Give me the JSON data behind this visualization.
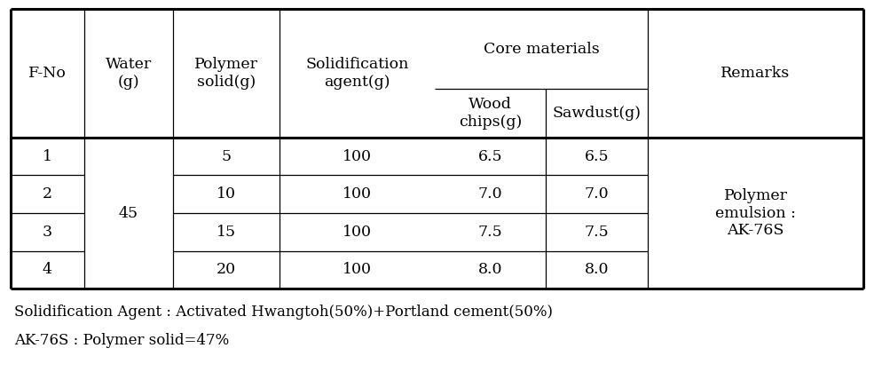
{
  "headers": {
    "col1": "F-No",
    "col2": "Water\n(g)",
    "col3": "Polymer\nsolid(g)",
    "col4": "Solidification\nagent(g)",
    "col5_parent": "Core materials",
    "col5a": "Wood\nchips(g)",
    "col5b": "Sawdust(g)",
    "col6": "Remarks"
  },
  "rows": [
    [
      "1",
      "5",
      "100",
      "6.5",
      "6.5"
    ],
    [
      "2",
      "10",
      "100",
      "7.0",
      "7.0"
    ],
    [
      "3",
      "15",
      "100",
      "7.5",
      "7.5"
    ],
    [
      "4",
      "20",
      "100",
      "8.0",
      "8.0"
    ]
  ],
  "water_val": "45",
  "remarks_lines": [
    "Polymer",
    "emulsion :",
    "AK-76S"
  ],
  "footnote1": "Solidification Agent : Activated Hwangtoh(50%)+Portland cement(50%)",
  "footnote2": "AK-76S : Polymer solid=47%",
  "bg_color": "#ffffff",
  "text_color": "#000000",
  "line_color": "#000000",
  "lw_thick": 2.2,
  "lw_thin": 0.9,
  "font_size": 12.5,
  "footnote_font_size": 12.0
}
